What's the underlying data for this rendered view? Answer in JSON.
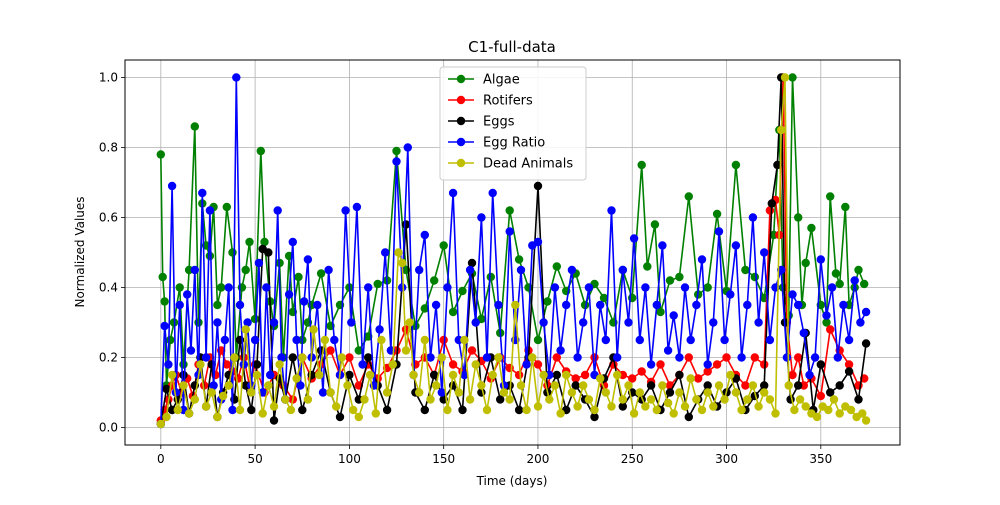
{
  "chart_data": {
    "type": "line",
    "title": "C1-full-data",
    "xlabel": "Time (days)",
    "ylabel": "Normalized Values",
    "xlim": [
      -19,
      392
    ],
    "ylim": [
      -0.05,
      1.05
    ],
    "xticks": [
      0,
      50,
      100,
      150,
      200,
      250,
      300,
      350
    ],
    "yticks": [
      0.0,
      0.2,
      0.4,
      0.6,
      0.8,
      1.0
    ],
    "xtick_labels": [
      "0",
      "50",
      "100",
      "150",
      "200",
      "250",
      "300",
      "350"
    ],
    "ytick_labels": [
      "0.0",
      "0.2",
      "0.4",
      "0.6",
      "0.8",
      "1.0"
    ],
    "grid": true,
    "legend_position": "top-center",
    "marker": "circle",
    "series": [
      {
        "name": "Algae",
        "color": "#008000",
        "x": [
          0,
          1,
          2,
          3,
          5,
          7,
          10,
          12,
          15,
          18,
          20,
          22,
          24,
          26,
          28,
          30,
          32,
          35,
          38,
          40,
          43,
          45,
          47,
          50,
          53,
          55,
          58,
          60,
          63,
          65,
          68,
          70,
          73,
          75,
          78,
          80,
          85,
          90,
          95,
          100,
          105,
          110,
          115,
          120,
          125,
          130,
          135,
          140,
          145,
          150,
          155,
          160,
          165,
          170,
          175,
          180,
          185,
          190,
          195,
          200,
          205,
          210,
          215,
          220,
          225,
          230,
          235,
          240,
          245,
          250,
          255,
          258,
          262,
          265,
          270,
          275,
          280,
          285,
          290,
          295,
          300,
          305,
          310,
          315,
          320,
          325,
          328,
          330,
          333,
          335,
          338,
          340,
          342,
          345,
          350,
          353,
          355,
          358,
          360,
          363,
          365,
          368,
          370,
          373
        ],
        "y": [
          0.78,
          0.43,
          0.36,
          0.12,
          0.25,
          0.3,
          0.4,
          0.18,
          0.45,
          0.86,
          0.3,
          0.64,
          0.52,
          0.49,
          0.63,
          0.35,
          0.4,
          0.63,
          0.5,
          0.2,
          0.4,
          0.45,
          0.53,
          0.31,
          0.79,
          0.53,
          0.36,
          0.29,
          0.47,
          0.2,
          0.49,
          0.33,
          0.43,
          0.25,
          0.3,
          0.35,
          0.44,
          0.29,
          0.35,
          0.4,
          0.22,
          0.26,
          0.41,
          0.42,
          0.79,
          0.45,
          0.29,
          0.34,
          0.42,
          0.52,
          0.33,
          0.39,
          0.44,
          0.31,
          0.43,
          0.27,
          0.62,
          0.48,
          0.4,
          0.25,
          0.36,
          0.46,
          0.39,
          0.44,
          0.35,
          0.41,
          0.37,
          0.3,
          0.45,
          0.37,
          0.75,
          0.46,
          0.58,
          0.33,
          0.42,
          0.43,
          0.66,
          0.38,
          0.4,
          0.61,
          0.39,
          0.75,
          0.45,
          0.43,
          0.37,
          0.55,
          0.85,
          0.4,
          0.32,
          1.0,
          0.6,
          0.35,
          0.47,
          0.57,
          0.35,
          0.3,
          0.66,
          0.44,
          0.41,
          0.63,
          0.35,
          0.4,
          0.45,
          0.41
        ]
      },
      {
        "name": "Rotifers",
        "color": "#ff0000",
        "x": [
          0,
          2,
          4,
          6,
          8,
          11,
          14,
          17,
          20,
          23,
          26,
          29,
          32,
          35,
          38,
          41,
          44,
          47,
          50,
          55,
          60,
          65,
          70,
          75,
          80,
          85,
          90,
          95,
          100,
          105,
          110,
          115,
          120,
          125,
          130,
          135,
          140,
          145,
          150,
          155,
          160,
          165,
          170,
          175,
          180,
          185,
          190,
          195,
          200,
          205,
          210,
          215,
          220,
          225,
          230,
          235,
          240,
          245,
          250,
          255,
          260,
          265,
          270,
          275,
          280,
          285,
          290,
          295,
          300,
          305,
          310,
          315,
          320,
          323,
          326,
          328,
          330,
          332,
          335,
          338,
          341,
          345,
          350,
          355,
          360,
          365,
          370,
          373
        ],
        "y": [
          0.02,
          0.05,
          0.08,
          0.12,
          0.15,
          0.1,
          0.14,
          0.09,
          0.18,
          0.12,
          0.2,
          0.15,
          0.22,
          0.18,
          0.16,
          0.14,
          0.2,
          0.12,
          0.18,
          0.1,
          0.15,
          0.12,
          0.08,
          0.2,
          0.14,
          0.18,
          0.22,
          0.15,
          0.2,
          0.12,
          0.18,
          0.14,
          0.17,
          0.22,
          0.28,
          0.18,
          0.2,
          0.15,
          0.25,
          0.18,
          0.16,
          0.22,
          0.19,
          0.14,
          0.2,
          0.17,
          0.15,
          0.22,
          0.18,
          0.12,
          0.2,
          0.16,
          0.14,
          0.15,
          0.2,
          0.12,
          0.18,
          0.15,
          0.14,
          0.16,
          0.13,
          0.18,
          0.12,
          0.15,
          0.2,
          0.14,
          0.16,
          0.18,
          0.2,
          0.15,
          0.12,
          0.2,
          0.18,
          0.62,
          0.65,
          0.55,
          1.0,
          0.3,
          0.15,
          0.2,
          0.12,
          0.14,
          0.09,
          0.28,
          0.22,
          0.18,
          0.12,
          0.14
        ]
      },
      {
        "name": "Eggs",
        "color": "#000000",
        "x": [
          0,
          3,
          6,
          9,
          12,
          15,
          18,
          21,
          24,
          27,
          30,
          33,
          36,
          39,
          42,
          45,
          48,
          51,
          54,
          57,
          60,
          63,
          66,
          70,
          75,
          80,
          85,
          90,
          95,
          100,
          105,
          110,
          115,
          120,
          125,
          130,
          135,
          140,
          145,
          150,
          155,
          160,
          165,
          170,
          175,
          180,
          185,
          190,
          195,
          200,
          205,
          210,
          215,
          220,
          225,
          230,
          235,
          240,
          245,
          250,
          255,
          260,
          265,
          270,
          275,
          280,
          285,
          290,
          295,
          300,
          305,
          310,
          315,
          320,
          324,
          327,
          329,
          331,
          334,
          338,
          342,
          346,
          350,
          355,
          360,
          365,
          370,
          374
        ],
        "y": [
          0.01,
          0.11,
          0.05,
          0.08,
          0.15,
          0.04,
          0.12,
          0.2,
          0.06,
          0.18,
          0.03,
          0.1,
          0.15,
          0.08,
          0.25,
          0.12,
          0.05,
          0.18,
          0.51,
          0.5,
          0.02,
          0.14,
          0.08,
          0.2,
          0.05,
          0.15,
          0.22,
          0.1,
          0.03,
          0.15,
          0.08,
          0.2,
          0.12,
          0.05,
          0.18,
          0.58,
          0.1,
          0.05,
          0.15,
          0.08,
          0.12,
          0.05,
          0.47,
          0.1,
          0.2,
          0.08,
          0.12,
          0.05,
          0.2,
          0.69,
          0.1,
          0.15,
          0.05,
          0.12,
          0.08,
          0.03,
          0.14,
          0.2,
          0.06,
          0.1,
          0.08,
          0.12,
          0.05,
          0.1,
          0.15,
          0.03,
          0.08,
          0.12,
          0.06,
          0.1,
          0.14,
          0.05,
          0.09,
          0.12,
          0.64,
          0.75,
          1.0,
          0.3,
          0.08,
          0.12,
          0.27,
          0.05,
          0.18,
          0.1,
          0.12,
          0.16,
          0.08,
          0.24
        ]
      },
      {
        "name": "Egg Ratio",
        "color": "#0000ff",
        "x": [
          0,
          2,
          4,
          6,
          8,
          10,
          12,
          14,
          16,
          18,
          20,
          22,
          24,
          26,
          28,
          30,
          32,
          34,
          36,
          38,
          40,
          42,
          44,
          46,
          48,
          50,
          52,
          54,
          56,
          58,
          60,
          62,
          64,
          66,
          68,
          70,
          72,
          74,
          76,
          78,
          80,
          83,
          86,
          89,
          92,
          95,
          98,
          101,
          104,
          107,
          110,
          113,
          116,
          119,
          122,
          125,
          128,
          131,
          134,
          137,
          140,
          143,
          146,
          149,
          152,
          155,
          158,
          161,
          164,
          167,
          170,
          173,
          176,
          179,
          182,
          185,
          188,
          191,
          194,
          197,
          200,
          203,
          206,
          209,
          212,
          215,
          218,
          221,
          224,
          227,
          230,
          233,
          236,
          239,
          242,
          245,
          248,
          251,
          254,
          257,
          260,
          263,
          266,
          269,
          272,
          275,
          278,
          281,
          284,
          287,
          290,
          293,
          296,
          299,
          302,
          305,
          308,
          311,
          314,
          317,
          320,
          323,
          326,
          329,
          332,
          335,
          338,
          341,
          344,
          347,
          350,
          353,
          356,
          359,
          362,
          365,
          368,
          371,
          374
        ],
        "y": [
          0.01,
          0.29,
          0.18,
          0.69,
          0.1,
          0.35,
          0.05,
          0.38,
          0.22,
          0.45,
          0.15,
          0.67,
          0.2,
          0.62,
          0.12,
          0.3,
          0.08,
          0.25,
          0.4,
          0.05,
          1.0,
          0.35,
          0.18,
          0.3,
          0.12,
          0.25,
          0.47,
          0.1,
          0.4,
          0.15,
          0.3,
          0.62,
          0.2,
          0.08,
          0.38,
          0.53,
          0.25,
          0.12,
          0.36,
          0.48,
          0.2,
          0.35,
          0.1,
          0.45,
          0.25,
          0.15,
          0.62,
          0.3,
          0.63,
          0.18,
          0.4,
          0.12,
          0.28,
          0.5,
          0.22,
          0.76,
          0.4,
          0.8,
          0.15,
          0.45,
          0.55,
          0.2,
          0.35,
          0.1,
          0.4,
          0.67,
          0.25,
          0.15,
          0.45,
          0.3,
          0.6,
          0.2,
          0.67,
          0.35,
          0.12,
          0.56,
          0.25,
          0.45,
          0.18,
          0.52,
          0.53,
          0.3,
          0.15,
          0.4,
          0.22,
          0.35,
          0.45,
          0.2,
          0.3,
          0.4,
          0.15,
          0.35,
          0.25,
          0.62,
          0.2,
          0.45,
          0.3,
          0.54,
          0.25,
          0.4,
          0.18,
          0.35,
          0.52,
          0.22,
          0.32,
          0.2,
          0.4,
          0.25,
          0.35,
          0.48,
          0.18,
          0.3,
          0.56,
          0.25,
          0.38,
          0.52,
          0.2,
          0.35,
          0.6,
          0.3,
          0.5,
          0.25,
          0.4,
          0.45,
          0.2,
          0.38,
          0.35,
          0.27,
          0.15,
          0.2,
          0.48,
          0.32,
          0.4,
          0.2,
          0.35,
          0.25,
          0.42,
          0.3,
          0.33
        ]
      },
      {
        "name": "Dead Animals",
        "color": "#bfbf00",
        "x": [
          0,
          3,
          6,
          9,
          12,
          15,
          18,
          21,
          24,
          27,
          30,
          33,
          36,
          39,
          42,
          45,
          48,
          51,
          54,
          57,
          60,
          63,
          66,
          69,
          72,
          75,
          78,
          81,
          84,
          87,
          90,
          93,
          96,
          99,
          102,
          105,
          108,
          111,
          114,
          117,
          120,
          123,
          126,
          128,
          130,
          132,
          134,
          137,
          140,
          143,
          146,
          149,
          152,
          155,
          158,
          161,
          164,
          167,
          170,
          173,
          176,
          179,
          182,
          185,
          188,
          191,
          194,
          197,
          200,
          203,
          206,
          209,
          212,
          215,
          218,
          221,
          224,
          227,
          230,
          233,
          236,
          239,
          242,
          245,
          248,
          251,
          254,
          257,
          260,
          263,
          266,
          269,
          272,
          275,
          278,
          281,
          284,
          287,
          290,
          293,
          296,
          299,
          302,
          305,
          308,
          311,
          314,
          317,
          320,
          323,
          326,
          329,
          331,
          333,
          336,
          339,
          342,
          345,
          348,
          351,
          354,
          357,
          360,
          363,
          366,
          369,
          372,
          374
        ],
        "y": [
          0.01,
          0.03,
          0.15,
          0.05,
          0.12,
          0.04,
          0.08,
          0.18,
          0.06,
          0.1,
          0.03,
          0.09,
          0.12,
          0.2,
          0.05,
          0.28,
          0.1,
          0.15,
          0.04,
          0.12,
          0.06,
          0.18,
          0.08,
          0.05,
          0.14,
          0.2,
          0.08,
          0.28,
          0.15,
          0.25,
          0.1,
          0.06,
          0.2,
          0.12,
          0.05,
          0.03,
          0.08,
          0.15,
          0.04,
          0.25,
          0.1,
          0.18,
          0.5,
          0.47,
          0.22,
          0.3,
          0.15,
          0.1,
          0.25,
          0.08,
          0.12,
          0.2,
          0.05,
          0.15,
          0.1,
          0.25,
          0.08,
          0.18,
          0.12,
          0.05,
          0.15,
          0.2,
          0.1,
          0.08,
          0.35,
          0.12,
          0.05,
          0.2,
          0.06,
          0.15,
          0.08,
          0.12,
          0.04,
          0.15,
          0.1,
          0.06,
          0.12,
          0.08,
          0.05,
          0.14,
          0.1,
          0.06,
          0.15,
          0.08,
          0.12,
          0.04,
          0.1,
          0.06,
          0.08,
          0.05,
          0.12,
          0.07,
          0.04,
          0.1,
          0.06,
          0.14,
          0.08,
          0.05,
          0.1,
          0.06,
          0.12,
          0.08,
          0.15,
          0.1,
          0.05,
          0.08,
          0.12,
          0.06,
          0.1,
          0.08,
          0.04,
          0.85,
          1.0,
          0.12,
          0.05,
          0.08,
          0.06,
          0.04,
          0.03,
          0.06,
          0.05,
          0.08,
          0.04,
          0.06,
          0.05,
          0.03,
          0.04,
          0.02
        ]
      }
    ]
  }
}
